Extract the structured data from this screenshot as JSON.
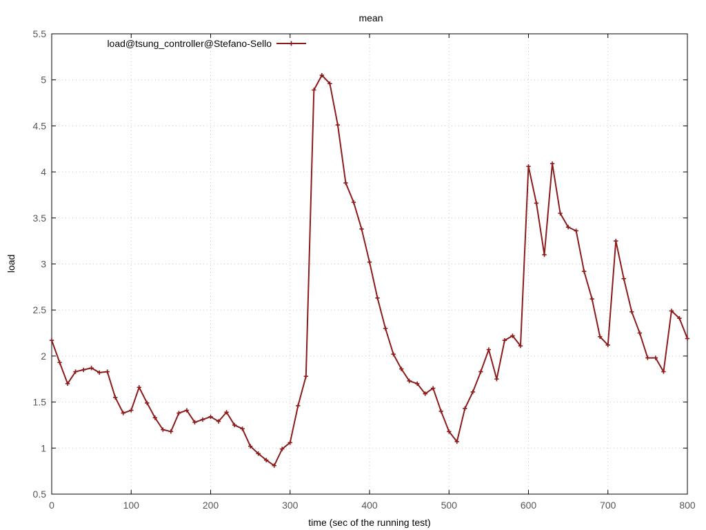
{
  "chart_data": {
    "type": "line",
    "title": "mean",
    "xlabel": "time (sec of the running test)",
    "ylabel": "load",
    "xlim": [
      0,
      800
    ],
    "ylim": [
      0.5,
      5.5
    ],
    "xticks": [
      0,
      100,
      200,
      300,
      400,
      500,
      600,
      700,
      800
    ],
    "yticks": [
      0.5,
      1,
      1.5,
      2,
      2.5,
      3,
      3.5,
      4,
      4.5,
      5,
      5.5
    ],
    "xtick_labels": [
      "0",
      "100",
      "200",
      "300",
      "400",
      "500",
      "600",
      "700",
      "800"
    ],
    "ytick_labels": [
      "0.5",
      "1",
      "1.5",
      "2",
      "2.5",
      "3",
      "3.5",
      "4",
      "4.5",
      "5",
      "5.5"
    ],
    "grid": true,
    "legend_position": "top-left",
    "series": [
      {
        "name": "load@tsung_controller@Stefano-Sello",
        "color": "#8b1a1a",
        "marker": "plus",
        "x": [
          0,
          10,
          20,
          30,
          40,
          50,
          60,
          70,
          80,
          90,
          100,
          110,
          120,
          130,
          140,
          150,
          160,
          170,
          180,
          190,
          200,
          210,
          220,
          230,
          240,
          250,
          260,
          270,
          280,
          290,
          300,
          310,
          320,
          330,
          340,
          350,
          360,
          370,
          380,
          390,
          400,
          410,
          420,
          430,
          440,
          450,
          460,
          470,
          480,
          490,
          500,
          510,
          520,
          530,
          540,
          550,
          560,
          570,
          580,
          590,
          600,
          610,
          620,
          630,
          640,
          650,
          660,
          670,
          680,
          690,
          700,
          710,
          720,
          730,
          740,
          750,
          760,
          770,
          780,
          790,
          800
        ],
        "values": [
          2.17,
          1.93,
          1.7,
          1.83,
          1.85,
          1.87,
          1.82,
          1.83,
          1.55,
          1.38,
          1.41,
          1.66,
          1.49,
          1.33,
          1.2,
          1.18,
          1.38,
          1.41,
          1.28,
          1.31,
          1.34,
          1.29,
          1.39,
          1.25,
          1.21,
          1.02,
          0.94,
          0.87,
          0.81,
          0.99,
          1.06,
          1.46,
          1.78,
          4.89,
          5.05,
          4.96,
          4.51,
          3.88,
          3.67,
          3.38,
          3.02,
          2.63,
          2.3,
          2.02,
          1.86,
          1.73,
          1.7,
          1.59,
          1.65,
          1.4,
          1.18,
          1.07,
          1.43,
          1.61,
          1.83,
          2.07,
          1.75,
          2.17,
          2.22,
          2.11,
          4.06,
          3.66,
          3.1,
          4.09,
          3.55,
          3.4,
          3.36,
          2.92,
          2.62,
          2.21,
          2.12,
          3.25,
          2.84,
          2.48,
          2.25,
          1.98,
          1.98,
          1.83,
          2.49,
          2.41,
          2.19
        ]
      }
    ]
  }
}
